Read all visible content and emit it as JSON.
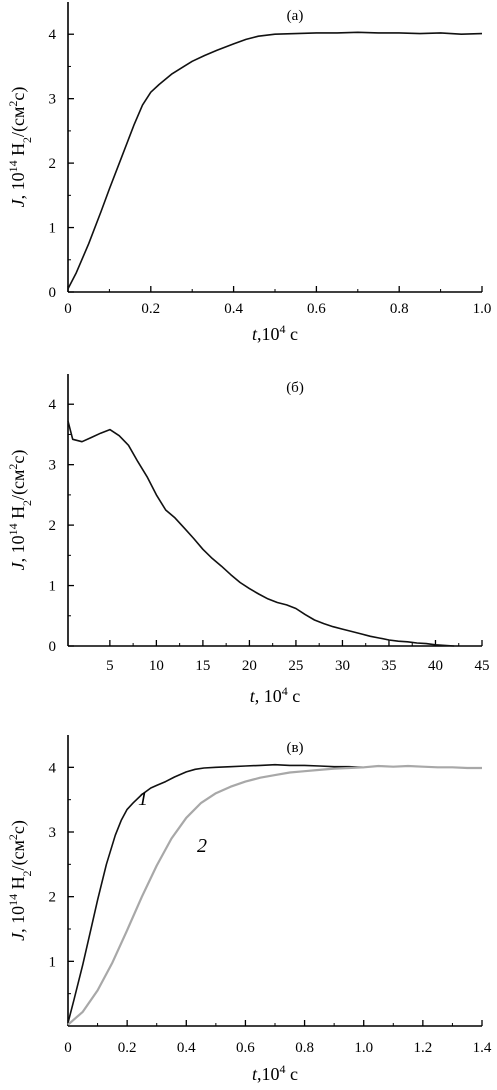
{
  "chart_data": [
    {
      "type": "line",
      "panel_label": "(а)",
      "xlabel": {
        "var": "t",
        "text": ",10",
        "exp": "4",
        "unit": " с"
      },
      "ylabel": {
        "var": "J",
        "text": ", 10",
        "exp": "14",
        "mid": " H",
        "sub": "2",
        "tail": "/(см",
        "exp2": "2",
        "end": "с)"
      },
      "xlim": [
        0,
        1.0
      ],
      "ylim": [
        0,
        4.5
      ],
      "xticks": [
        0,
        0.2,
        0.4,
        0.6,
        0.8,
        1.0
      ],
      "xtick_labels": [
        "0",
        "0.2",
        "0.4",
        "0.6",
        "0.8",
        "1.0"
      ],
      "yticks": [
        0,
        1,
        2,
        3,
        4
      ],
      "ytick_labels": [
        "0",
        "1",
        "2",
        "3",
        "4"
      ],
      "series": [
        {
          "color": "#111111",
          "x": [
            0,
            0.02,
            0.05,
            0.08,
            0.1,
            0.13,
            0.16,
            0.18,
            0.2,
            0.22,
            0.25,
            0.28,
            0.3,
            0.33,
            0.36,
            0.4,
            0.43,
            0.46,
            0.5,
            0.55,
            0.6,
            0.65,
            0.7,
            0.75,
            0.8,
            0.85,
            0.9,
            0.95,
            1.0
          ],
          "y": [
            0.05,
            0.3,
            0.75,
            1.25,
            1.6,
            2.1,
            2.6,
            2.9,
            3.1,
            3.22,
            3.38,
            3.5,
            3.58,
            3.67,
            3.75,
            3.85,
            3.92,
            3.97,
            4.0,
            4.01,
            4.02,
            4.02,
            4.03,
            4.02,
            4.02,
            4.01,
            4.02,
            4.0,
            4.01
          ]
        }
      ]
    },
    {
      "type": "line",
      "panel_label": "(б)",
      "xlabel": {
        "var": "t",
        "text": ", 10",
        "exp": "4",
        "unit": " с"
      },
      "ylabel": {
        "var": "J",
        "text": ", 10",
        "exp": "14",
        "mid": " H",
        "sub": "2",
        "tail": "/(см",
        "exp2": "2",
        "end": "с)"
      },
      "xlim": [
        0.5,
        45
      ],
      "ylim": [
        0,
        4.5
      ],
      "xticks": [
        5,
        10,
        15,
        20,
        25,
        30,
        35,
        40,
        45
      ],
      "xtick_labels": [
        "5",
        "10",
        "15",
        "20",
        "25",
        "30",
        "35",
        "40",
        "45"
      ],
      "yticks": [
        0,
        1,
        2,
        3,
        4
      ],
      "ytick_labels": [
        "0",
        "1",
        "2",
        "3",
        "4"
      ],
      "series": [
        {
          "color": "#111111",
          "x": [
            0.5,
            1,
            2,
            3,
            4,
            5,
            6,
            7,
            8,
            9,
            10,
            11,
            12,
            13,
            14,
            15,
            16,
            17,
            18,
            19,
            20,
            21,
            22,
            23,
            24,
            25,
            26,
            27,
            28,
            29,
            30,
            31,
            32,
            33,
            34,
            35,
            36,
            37,
            38,
            39,
            40,
            41,
            42
          ],
          "y": [
            3.72,
            3.42,
            3.38,
            3.45,
            3.52,
            3.58,
            3.48,
            3.32,
            3.05,
            2.8,
            2.5,
            2.25,
            2.12,
            1.95,
            1.78,
            1.6,
            1.45,
            1.32,
            1.18,
            1.05,
            0.95,
            0.86,
            0.78,
            0.72,
            0.68,
            0.62,
            0.52,
            0.43,
            0.37,
            0.32,
            0.28,
            0.24,
            0.2,
            0.16,
            0.13,
            0.1,
            0.08,
            0.07,
            0.05,
            0.04,
            0.02,
            0.01,
            0.0
          ]
        }
      ]
    },
    {
      "type": "line",
      "panel_label": "(в)",
      "xlabel": {
        "var": "t",
        "text": ",10",
        "exp": "4",
        "unit": " с"
      },
      "ylabel": {
        "var": "J",
        "text": ", 10",
        "exp": "14",
        "mid": " H",
        "sub": "2",
        "tail": "/(см",
        "exp2": "2",
        "end": "с)"
      },
      "xlim": [
        0,
        1.4
      ],
      "ylim": [
        0,
        4.5
      ],
      "xticks": [
        0,
        0.2,
        0.4,
        0.6,
        0.8,
        1.0,
        1.2,
        1.4
      ],
      "xtick_labels": [
        "0",
        "0.2",
        "0.4",
        "0.6",
        "0.8",
        "1.0",
        "1.2",
        "1.4"
      ],
      "yticks": [
        1,
        2,
        3,
        4
      ],
      "ytick_labels": [
        "1",
        "2",
        "3",
        "4"
      ],
      "series": [
        {
          "name": "1",
          "color": "#111111",
          "x": [
            0,
            0.02,
            0.05,
            0.08,
            0.1,
            0.13,
            0.16,
            0.18,
            0.2,
            0.22,
            0.25,
            0.28,
            0.3,
            0.33,
            0.36,
            0.4,
            0.43,
            0.46,
            0.5,
            0.55,
            0.6,
            0.65,
            0.7,
            0.75,
            0.8,
            0.85,
            0.9,
            0.95,
            1.0
          ],
          "y": [
            0.05,
            0.4,
            0.95,
            1.55,
            1.95,
            2.5,
            2.95,
            3.18,
            3.35,
            3.45,
            3.58,
            3.68,
            3.72,
            3.78,
            3.85,
            3.93,
            3.97,
            3.99,
            4.0,
            4.01,
            4.02,
            4.03,
            4.04,
            4.03,
            4.03,
            4.02,
            4.01,
            4.01,
            4.0
          ]
        },
        {
          "name": "2",
          "color": "#a8a8a8",
          "x": [
            0,
            0.05,
            0.1,
            0.15,
            0.2,
            0.25,
            0.3,
            0.35,
            0.4,
            0.45,
            0.5,
            0.55,
            0.6,
            0.65,
            0.7,
            0.75,
            0.8,
            0.85,
            0.9,
            0.95,
            1.0,
            1.05,
            1.1,
            1.15,
            1.2,
            1.25,
            1.3,
            1.35,
            1.4
          ],
          "y": [
            0.02,
            0.22,
            0.55,
            0.98,
            1.48,
            2.0,
            2.48,
            2.9,
            3.22,
            3.45,
            3.6,
            3.7,
            3.78,
            3.84,
            3.88,
            3.92,
            3.94,
            3.96,
            3.98,
            3.99,
            4.0,
            4.02,
            4.01,
            4.02,
            4.01,
            4.0,
            4.0,
            3.99,
            3.99
          ]
        }
      ]
    }
  ]
}
